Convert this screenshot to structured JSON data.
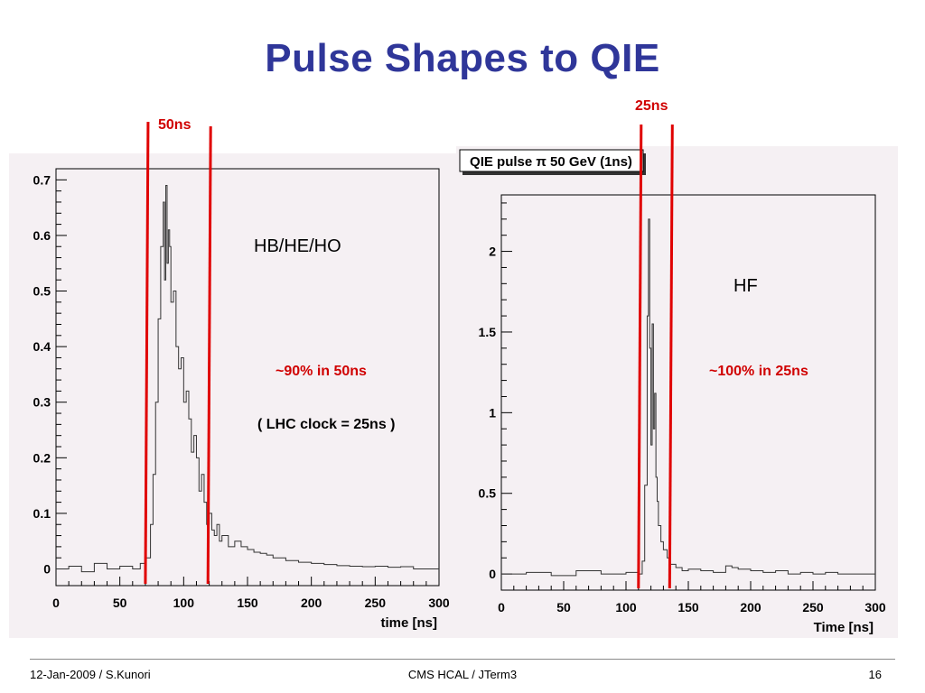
{
  "slide": {
    "title": "Pulse Shapes to QIE",
    "footer_left": "12-Jan-2009 / S.Kunori",
    "footer_center": "CMS HCAL / JTerm3",
    "footer_right": "16"
  },
  "colors": {
    "title": "#2f3699",
    "marker": "#e00000",
    "frame_bg": "#f5f0f3",
    "trace": "#333333"
  },
  "annotations": {
    "left_label": "HB/HE/HO",
    "left_fraction": "~90% in 50ns",
    "left_clock": "( LHC clock = 25ns )",
    "left_window": "50ns",
    "right_label": "HF",
    "right_fraction": "~100% in 25ns",
    "right_window": "25ns"
  },
  "chart_data": [
    {
      "type": "line",
      "title": "",
      "xlabel": "time [ns]",
      "ylabel": "",
      "xlim": [
        0,
        300
      ],
      "ylim": [
        -0.03,
        0.72
      ],
      "xticks": [
        "0",
        "50",
        "100",
        "150",
        "200",
        "250",
        "300"
      ],
      "yticks": [
        "0",
        "0.1",
        "0.2",
        "0.3",
        "0.4",
        "0.5",
        "0.6",
        "0.7"
      ],
      "grid": false,
      "markers": [
        70,
        119
      ],
      "series": [
        {
          "x": [
            0,
            10,
            20,
            30,
            40,
            50,
            60,
            66,
            70,
            74,
            76,
            78,
            80,
            82,
            84,
            85,
            86,
            87,
            88,
            89,
            90,
            92,
            94,
            96,
            98,
            100,
            102,
            104,
            106,
            108,
            110,
            112,
            114,
            116,
            118,
            120,
            122,
            124,
            126,
            128,
            130,
            135,
            140,
            145,
            150,
            155,
            160,
            165,
            170,
            180,
            190,
            200,
            210,
            220,
            230,
            240,
            250,
            260,
            270,
            280,
            290
          ],
          "y": [
            0.0,
            0.005,
            -0.005,
            0.01,
            0.0,
            0.005,
            0.0,
            0.01,
            0.02,
            0.08,
            0.17,
            0.3,
            0.45,
            0.58,
            0.66,
            0.52,
            0.69,
            0.55,
            0.61,
            0.58,
            0.48,
            0.5,
            0.4,
            0.36,
            0.38,
            0.3,
            0.32,
            0.27,
            0.21,
            0.24,
            0.2,
            0.14,
            0.17,
            0.12,
            0.08,
            0.1,
            0.07,
            0.06,
            0.08,
            0.05,
            0.06,
            0.04,
            0.05,
            0.04,
            0.035,
            0.03,
            0.028,
            0.025,
            0.02,
            0.015,
            0.012,
            0.01,
            0.008,
            0.006,
            0.005,
            0.004,
            0.005,
            0.003,
            0.004,
            0.0,
            0.0
          ]
        }
      ]
    },
    {
      "type": "line",
      "title": "QIE pulse π 50 GeV (1ns)",
      "xlabel": "Time  [ns]",
      "ylabel": "",
      "xlim": [
        0,
        300
      ],
      "ylim": [
        -0.1,
        2.35
      ],
      "xticks": [
        "0",
        "50",
        "100",
        "150",
        "200",
        "250",
        "300"
      ],
      "yticks": [
        "0",
        "0.5",
        "1",
        "1.5",
        "2"
      ],
      "grid": false,
      "markers": [
        110,
        135
      ],
      "series": [
        {
          "x": [
            0,
            20,
            40,
            60,
            80,
            100,
            110,
            113,
            115,
            117,
            118,
            119,
            120,
            121,
            122,
            123,
            124,
            125,
            126,
            128,
            130,
            133,
            135,
            140,
            145,
            150,
            160,
            170,
            180,
            185,
            190,
            200,
            210,
            220,
            230,
            240,
            250,
            260,
            270,
            280,
            290,
            300
          ],
          "y": [
            0.0,
            0.01,
            -0.01,
            0.02,
            0.0,
            0.01,
            0.0,
            0.08,
            0.55,
            1.6,
            2.2,
            1.4,
            0.8,
            1.55,
            0.9,
            1.12,
            0.6,
            0.45,
            0.3,
            0.2,
            0.15,
            0.1,
            0.06,
            0.04,
            0.02,
            0.03,
            0.02,
            0.01,
            0.05,
            0.04,
            0.03,
            0.02,
            0.01,
            0.02,
            0.0,
            0.01,
            0.0,
            0.01,
            0.0,
            0.0,
            0.0,
            0.0
          ]
        }
      ]
    }
  ]
}
